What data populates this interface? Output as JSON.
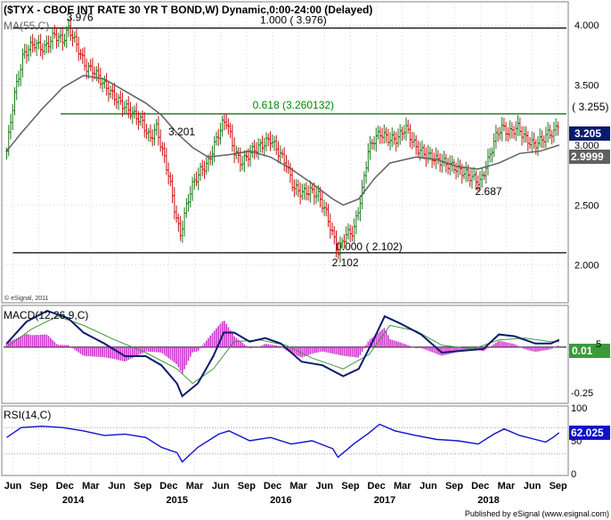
{
  "header": {
    "title": "($TYX - CBOE INT RATE 30 YR T BOND,W) Dynamic,0:00-24:00 (Delayed)",
    "ma_label": "MA(55,C)",
    "copyright": "© eSignal, 2011"
  },
  "footer": {
    "published": "Published by eSignal (www.esignal.com)"
  },
  "chart_data": [
    {
      "type": "candlestick",
      "panel": "price",
      "y_ticks": [
        "4.000",
        "3.500",
        "3.000",
        "2.500",
        "2.000"
      ],
      "ylim": [
        1.7,
        4.18
      ],
      "last_price": "3.205",
      "ma_value": "2.9999",
      "ma_period": "MA(55,C)",
      "fib_levels": [
        {
          "label": "1.000 ( 3.976)",
          "value": 3.976
        },
        {
          "label": "0.618 (3.260132)",
          "value": 3.260132
        },
        {
          "label": "0.000 ( 2.102)",
          "value": 2.102
        }
      ],
      "fib_right_label": "( 3.255)",
      "annotations": [
        {
          "text": "3.976",
          "x": 2014.03,
          "y": 3.976
        },
        {
          "text": "3.201",
          "x": 2015.08,
          "y": 3.201
        },
        {
          "text": "2.102",
          "x": 2016.62,
          "y": 2.102
        },
        {
          "text": "2.687",
          "x": 2018.0,
          "y": 2.687
        }
      ],
      "price_path": [
        [
          2013.36,
          2.95
        ],
        [
          2013.43,
          3.4
        ],
        [
          2013.52,
          3.75
        ],
        [
          2013.62,
          3.85
        ],
        [
          2013.72,
          3.8
        ],
        [
          2013.82,
          3.92
        ],
        [
          2013.9,
          3.87
        ],
        [
          2013.96,
          3.976
        ],
        [
          2014.05,
          3.8
        ],
        [
          2014.12,
          3.65
        ],
        [
          2014.2,
          3.62
        ],
        [
          2014.3,
          3.5
        ],
        [
          2014.42,
          3.38
        ],
        [
          2014.55,
          3.28
        ],
        [
          2014.66,
          3.2
        ],
        [
          2014.74,
          3.05
        ],
        [
          2014.8,
          3.15
        ],
        [
          2014.86,
          2.95
        ],
        [
          2014.92,
          2.75
        ],
        [
          2014.97,
          2.5
        ],
        [
          2015.03,
          2.24
        ],
        [
          2015.08,
          2.45
        ],
        [
          2015.14,
          2.65
        ],
        [
          2015.22,
          2.78
        ],
        [
          2015.3,
          2.85
        ],
        [
          2015.38,
          3.05
        ],
        [
          2015.44,
          3.18
        ],
        [
          2015.48,
          3.201
        ],
        [
          2015.55,
          2.95
        ],
        [
          2015.62,
          2.85
        ],
        [
          2015.72,
          2.95
        ],
        [
          2015.82,
          3.0
        ],
        [
          2015.9,
          3.05
        ],
        [
          2015.97,
          2.95
        ],
        [
          2016.05,
          2.85
        ],
        [
          2016.12,
          2.65
        ],
        [
          2016.2,
          2.6
        ],
        [
          2016.28,
          2.62
        ],
        [
          2016.36,
          2.58
        ],
        [
          2016.43,
          2.45
        ],
        [
          2016.5,
          2.25
        ],
        [
          2016.55,
          2.102
        ],
        [
          2016.62,
          2.25
        ],
        [
          2016.7,
          2.28
        ],
        [
          2016.78,
          2.6
        ],
        [
          2016.84,
          2.95
        ],
        [
          2016.9,
          3.05
        ],
        [
          2016.96,
          3.1
        ],
        [
          2017.04,
          3.05
        ],
        [
          2017.12,
          3.05
        ],
        [
          2017.2,
          3.15
        ],
        [
          2017.3,
          2.98
        ],
        [
          2017.4,
          2.92
        ],
        [
          2017.5,
          2.88
        ],
        [
          2017.58,
          2.85
        ],
        [
          2017.66,
          2.82
        ],
        [
          2017.74,
          2.78
        ],
        [
          2017.8,
          2.75
        ],
        [
          2017.86,
          2.72
        ],
        [
          2017.92,
          2.687
        ],
        [
          2018.0,
          2.88
        ],
        [
          2018.06,
          3.05
        ],
        [
          2018.12,
          3.15
        ],
        [
          2018.2,
          3.1
        ],
        [
          2018.28,
          3.15
        ],
        [
          2018.36,
          3.05
        ],
        [
          2018.44,
          3.0
        ],
        [
          2018.52,
          3.05
        ],
        [
          2018.58,
          3.1
        ],
        [
          2018.63,
          3.1
        ],
        [
          2018.68,
          3.205
        ]
      ],
      "ma_path": [
        [
          2013.36,
          2.95
        ],
        [
          2013.5,
          3.1
        ],
        [
          2013.7,
          3.3
        ],
        [
          2013.9,
          3.48
        ],
        [
          2014.1,
          3.58
        ],
        [
          2014.3,
          3.55
        ],
        [
          2014.5,
          3.45
        ],
        [
          2014.7,
          3.35
        ],
        [
          2014.85,
          3.25
        ],
        [
          2015.0,
          3.1
        ],
        [
          2015.15,
          2.98
        ],
        [
          2015.3,
          2.9
        ],
        [
          2015.5,
          2.92
        ],
        [
          2015.7,
          2.95
        ],
        [
          2015.9,
          2.9
        ],
        [
          2016.1,
          2.8
        ],
        [
          2016.3,
          2.68
        ],
        [
          2016.5,
          2.55
        ],
        [
          2016.6,
          2.5
        ],
        [
          2016.75,
          2.55
        ],
        [
          2016.9,
          2.72
        ],
        [
          2017.05,
          2.85
        ],
        [
          2017.3,
          2.9
        ],
        [
          2017.5,
          2.88
        ],
        [
          2017.7,
          2.82
        ],
        [
          2017.9,
          2.8
        ],
        [
          2018.1,
          2.85
        ],
        [
          2018.3,
          2.93
        ],
        [
          2018.5,
          2.95
        ],
        [
          2018.68,
          3.0
        ]
      ]
    },
    {
      "type": "line",
      "panel": "macd",
      "title": "MACD(12,26,9,C)",
      "last_value": "0.01",
      "last_value_hidden": "5",
      "y_ticks": [
        "-0.25"
      ],
      "ylim": [
        -0.3,
        0.22
      ],
      "macd_path": [
        [
          2013.36,
          0.02
        ],
        [
          2013.55,
          0.14
        ],
        [
          2013.75,
          0.2
        ],
        [
          2013.95,
          0.16
        ],
        [
          2014.1,
          0.08
        ],
        [
          2014.3,
          0.02
        ],
        [
          2014.5,
          -0.05
        ],
        [
          2014.7,
          -0.05
        ],
        [
          2014.85,
          -0.1
        ],
        [
          2015.0,
          -0.2
        ],
        [
          2015.05,
          -0.27
        ],
        [
          2015.2,
          -0.2
        ],
        [
          2015.35,
          -0.05
        ],
        [
          2015.45,
          0.08
        ],
        [
          2015.55,
          0.08
        ],
        [
          2015.7,
          0.03
        ],
        [
          2015.85,
          0.05
        ],
        [
          2016.0,
          0.02
        ],
        [
          2016.2,
          -0.08
        ],
        [
          2016.4,
          -0.1
        ],
        [
          2016.6,
          -0.16
        ],
        [
          2016.75,
          -0.12
        ],
        [
          2016.9,
          0.05
        ],
        [
          2017.0,
          0.17
        ],
        [
          2017.15,
          0.13
        ],
        [
          2017.35,
          0.07
        ],
        [
          2017.55,
          -0.03
        ],
        [
          2017.75,
          -0.02
        ],
        [
          2017.95,
          -0.01
        ],
        [
          2018.1,
          0.07
        ],
        [
          2018.25,
          0.06
        ],
        [
          2018.45,
          0.02
        ],
        [
          2018.6,
          0.02
        ],
        [
          2018.68,
          0.04
        ]
      ],
      "signal_path": [
        [
          2013.36,
          0.0
        ],
        [
          2013.6,
          0.1
        ],
        [
          2013.85,
          0.17
        ],
        [
          2014.1,
          0.12
        ],
        [
          2014.4,
          0.04
        ],
        [
          2014.7,
          -0.03
        ],
        [
          2015.0,
          -0.12
        ],
        [
          2015.15,
          -0.2
        ],
        [
          2015.35,
          -0.12
        ],
        [
          2015.55,
          0.03
        ],
        [
          2015.8,
          0.04
        ],
        [
          2016.05,
          0.01
        ],
        [
          2016.3,
          -0.06
        ],
        [
          2016.6,
          -0.12
        ],
        [
          2016.85,
          -0.04
        ],
        [
          2017.05,
          0.12
        ],
        [
          2017.3,
          0.09
        ],
        [
          2017.55,
          0.01
        ],
        [
          2017.85,
          -0.01
        ],
        [
          2018.1,
          0.04
        ],
        [
          2018.35,
          0.05
        ],
        [
          2018.6,
          0.03
        ],
        [
          2018.68,
          0.03
        ]
      ]
    },
    {
      "type": "line",
      "panel": "rsi",
      "title": "RSI(14,C)",
      "last_value": "62.025",
      "y_ticks": [
        "100",
        "50",
        "0"
      ],
      "ylim": [
        0,
        100
      ],
      "levels": [
        70,
        30
      ],
      "rsi_path": [
        [
          2013.36,
          55
        ],
        [
          2013.5,
          70
        ],
        [
          2013.7,
          72
        ],
        [
          2013.9,
          70
        ],
        [
          2014.1,
          65
        ],
        [
          2014.3,
          58
        ],
        [
          2014.5,
          60
        ],
        [
          2014.7,
          55
        ],
        [
          2014.85,
          40
        ],
        [
          2015.0,
          32
        ],
        [
          2015.05,
          18
        ],
        [
          2015.2,
          40
        ],
        [
          2015.4,
          60
        ],
        [
          2015.5,
          65
        ],
        [
          2015.7,
          50
        ],
        [
          2015.9,
          55
        ],
        [
          2016.1,
          45
        ],
        [
          2016.3,
          50
        ],
        [
          2016.5,
          38
        ],
        [
          2016.55,
          25
        ],
        [
          2016.7,
          45
        ],
        [
          2016.85,
          62
        ],
        [
          2016.95,
          75
        ],
        [
          2017.1,
          65
        ],
        [
          2017.3,
          58
        ],
        [
          2017.5,
          52
        ],
        [
          2017.7,
          50
        ],
        [
          2017.9,
          45
        ],
        [
          2018.05,
          60
        ],
        [
          2018.15,
          68
        ],
        [
          2018.3,
          58
        ],
        [
          2018.45,
          52
        ],
        [
          2018.55,
          48
        ],
        [
          2018.62,
          55
        ],
        [
          2018.68,
          62
        ]
      ]
    }
  ],
  "x_axis": {
    "months": [
      {
        "label": "Jun",
        "x": 2013.42
      },
      {
        "label": "Sep",
        "x": 2013.67
      },
      {
        "label": "Dec",
        "x": 2013.92
      },
      {
        "label": "Mar",
        "x": 2014.17
      },
      {
        "label": "Jun",
        "x": 2014.42
      },
      {
        "label": "Sep",
        "x": 2014.67
      },
      {
        "label": "Dec",
        "x": 2014.92
      },
      {
        "label": "Mar",
        "x": 2015.17
      },
      {
        "label": "Jun",
        "x": 2015.42
      },
      {
        "label": "Sep",
        "x": 2015.67
      },
      {
        "label": "Dec",
        "x": 2015.92
      },
      {
        "label": "Mar",
        "x": 2016.17
      },
      {
        "label": "Jun",
        "x": 2016.42
      },
      {
        "label": "Sep",
        "x": 2016.67
      },
      {
        "label": "Dec",
        "x": 2016.92
      },
      {
        "label": "Mar",
        "x": 2017.17
      },
      {
        "label": "Jun",
        "x": 2017.42
      },
      {
        "label": "Sep",
        "x": 2017.67
      },
      {
        "label": "Dec",
        "x": 2017.92
      },
      {
        "label": "Mar",
        "x": 2018.17
      },
      {
        "label": "Jun",
        "x": 2018.42
      },
      {
        "label": "Sep",
        "x": 2018.67
      }
    ],
    "years": [
      {
        "label": "2014",
        "x": 2014.0
      },
      {
        "label": "2015",
        "x": 2015.0
      },
      {
        "label": "2016",
        "x": 2016.0
      },
      {
        "label": "2017",
        "x": 2017.0
      },
      {
        "label": "2018",
        "x": 2018.0
      }
    ]
  },
  "colors": {
    "up": "#1a7a1a",
    "down": "#cc1111",
    "ma": "#606060",
    "fib_top": "#000000",
    "fib_mid": "#006600",
    "macd_line": "#0a1a6e",
    "signal_line": "#3a9a3a",
    "histogram": "#cc33cc",
    "rsi_line": "#1010cc",
    "price_box": "#0a1a6e",
    "ma_box": "#606060",
    "grid": "#d8d8d8"
  }
}
